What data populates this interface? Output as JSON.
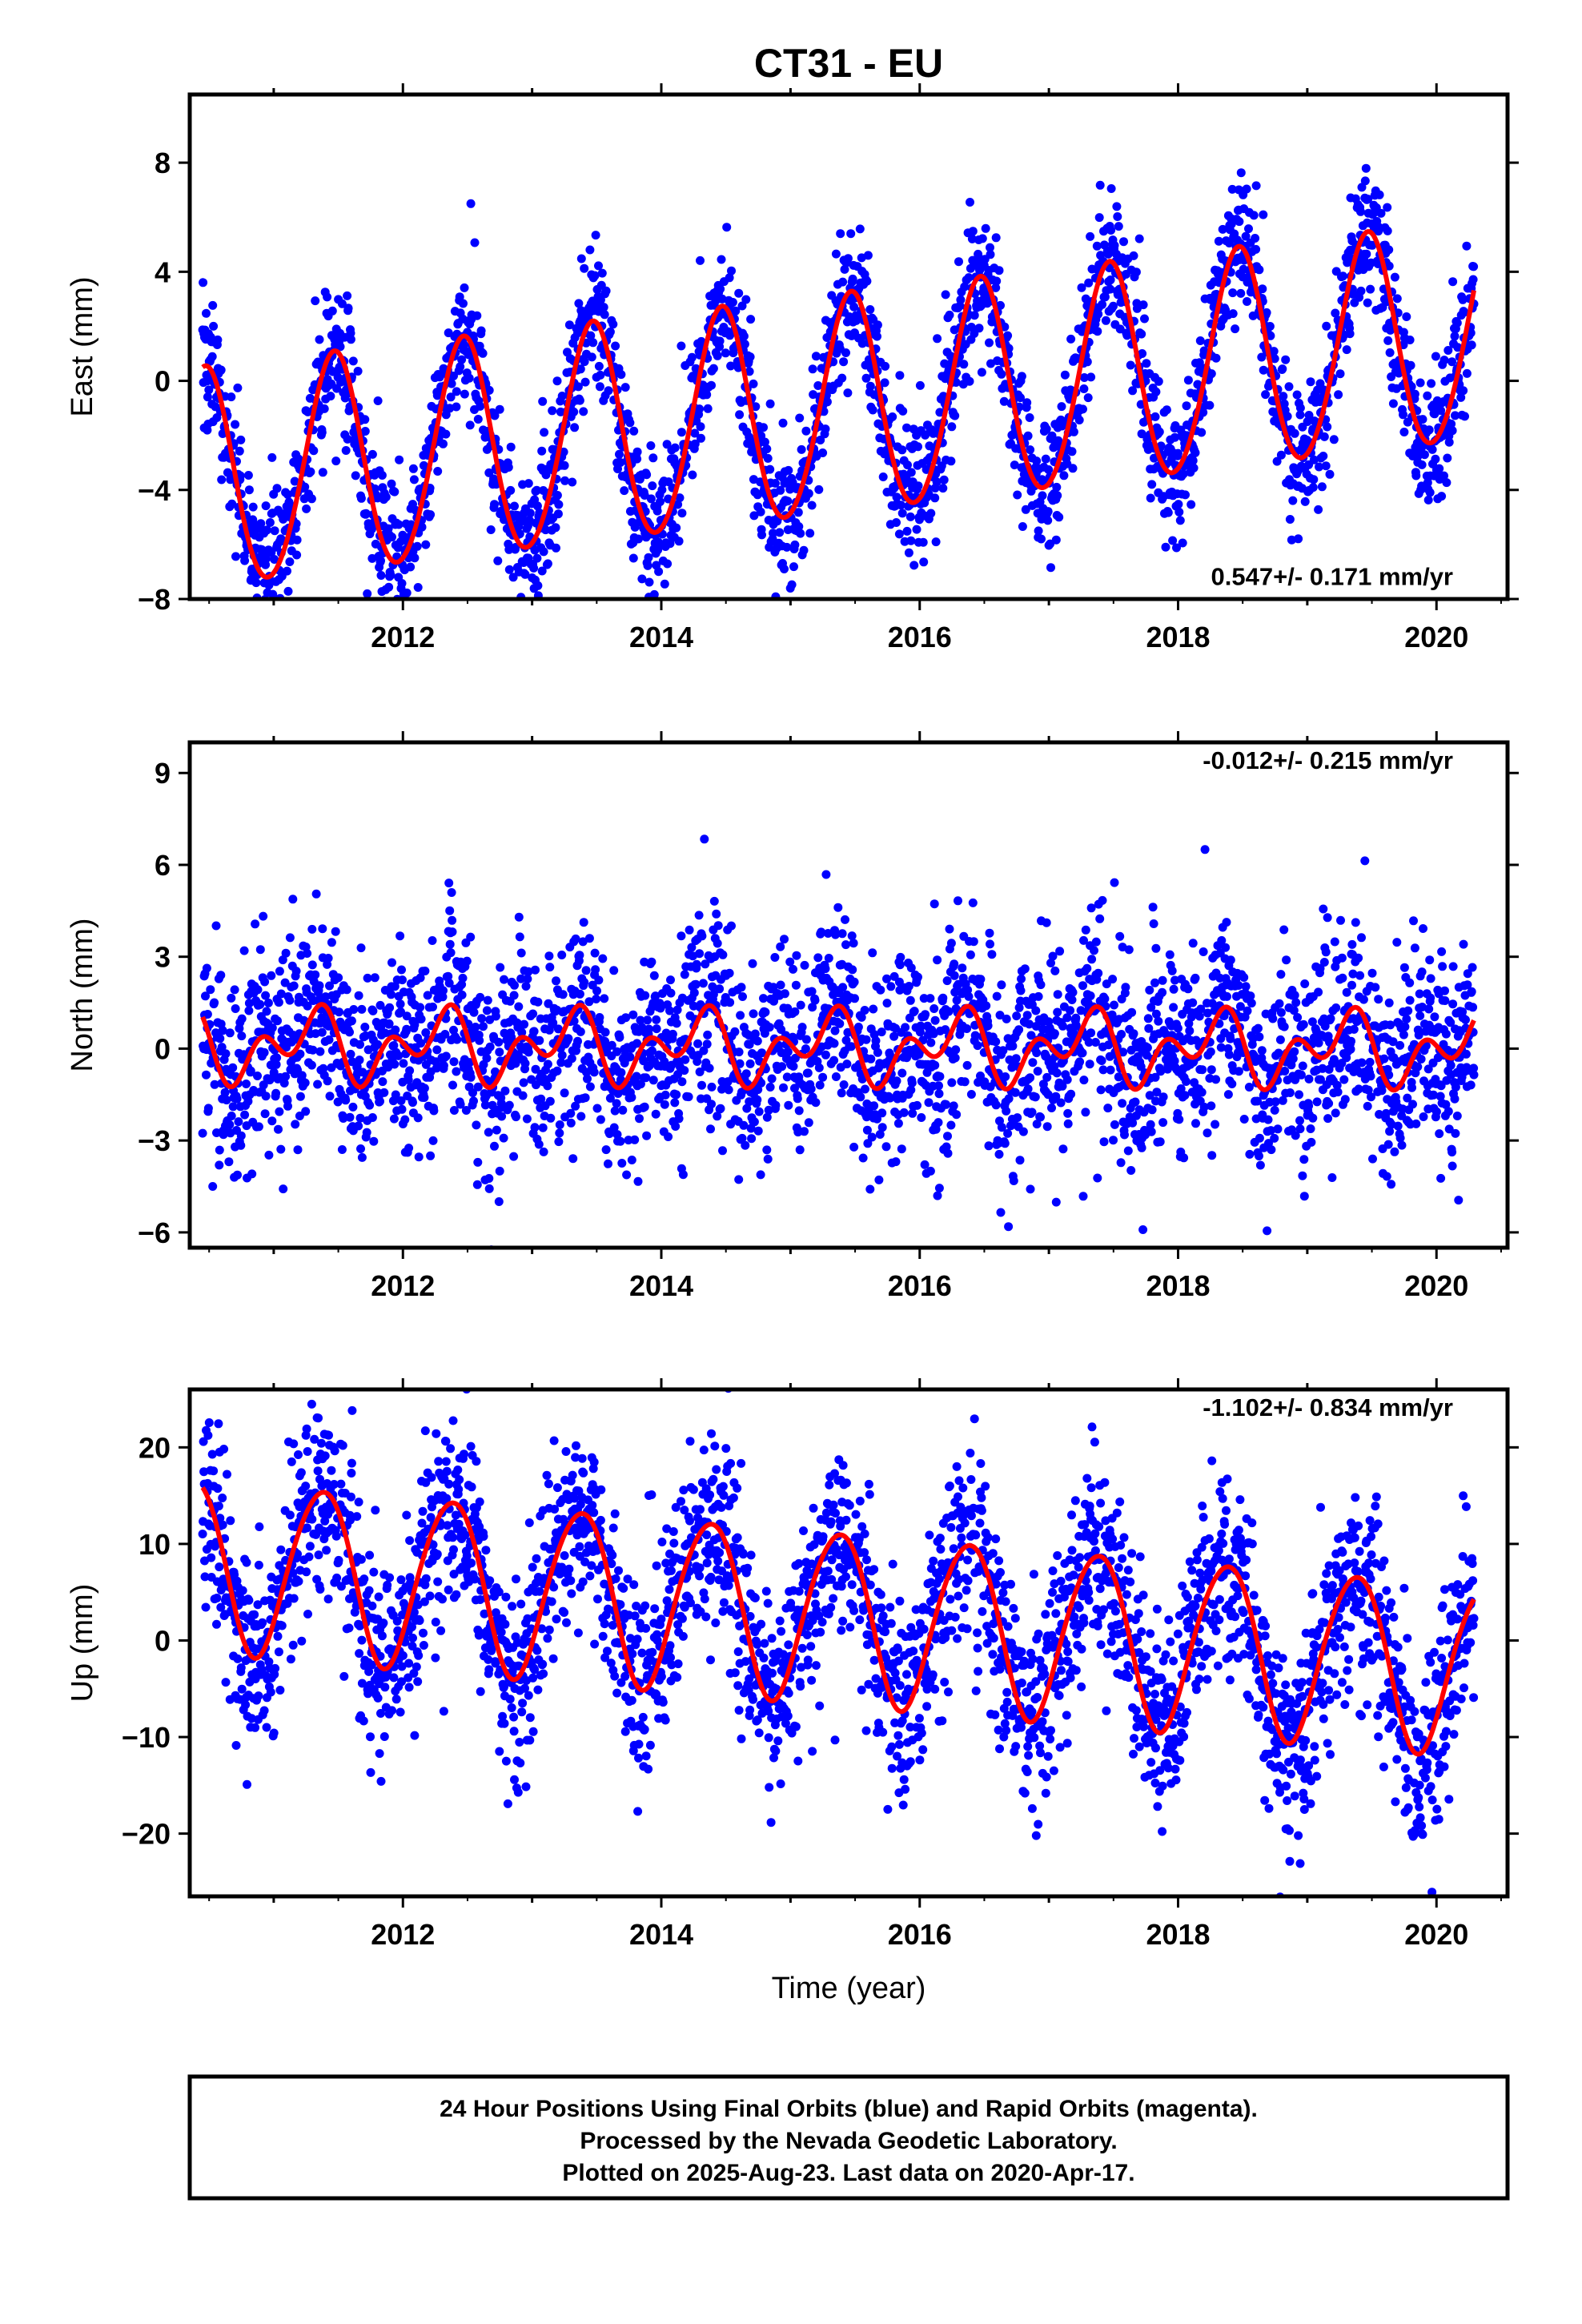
{
  "title": "CT31 - EU",
  "colors": {
    "points": "#0000ff",
    "model": "#ff0000",
    "frame": "#000000"
  },
  "xlabel": "Time (year)",
  "footer": {
    "line1": "24 Hour Positions Using Final Orbits (blue) and Rapid Orbits (magenta).",
    "line2": "Processed by the Nevada Geodetic Laboratory.",
    "line3": "Plotted on 2025-Aug-23. Last data on 2020-Apr-17."
  },
  "chart_data": [
    {
      "type": "scatter",
      "ylabel": "East (mm)",
      "rate_label": "0.547+/- 0.171 mm/yr",
      "xlim": [
        2010.35,
        2020.55
      ],
      "ylim": [
        -8,
        10.5
      ],
      "x_ticks": [
        2012,
        2014,
        2016,
        2018,
        2020
      ],
      "y_ticks": [
        -8,
        -4,
        0,
        4,
        8
      ],
      "grid": false,
      "data_start": 2010.45,
      "data_end": 2020.29,
      "model": {
        "offset": -1.2,
        "trend": 0.547,
        "ref_epoch": 2015.0,
        "annual_cos": -3.9,
        "annual_sin": 0.9,
        "semi_cos": 0.25,
        "semi_sin": 0.0
      },
      "scatter_sd": 1.25,
      "series": [
        {
          "name": "Final Orbits",
          "color": "#0000ff"
        },
        {
          "name": "Model fit",
          "color": "#ff0000"
        }
      ]
    },
    {
      "type": "scatter",
      "ylabel": "North (mm)",
      "rate_label": "-0.012+/- 0.215 mm/yr",
      "xlim": [
        2010.35,
        2020.55
      ],
      "ylim": [
        -6.5,
        10
      ],
      "x_ticks": [
        2012,
        2014,
        2016,
        2018,
        2020
      ],
      "y_ticks": [
        -6,
        -3,
        0,
        3,
        6,
        9
      ],
      "grid": false,
      "data_start": 2010.45,
      "data_end": 2020.29,
      "model": {
        "offset": 0.05,
        "trend": -0.012,
        "ref_epoch": 2015.0,
        "annual_cos": -0.1,
        "annual_sin": 0.75,
        "semi_cos": 0.2,
        "semi_sin": -0.75
      },
      "scatter_sd": 1.6,
      "series": [
        {
          "name": "Final Orbits",
          "color": "#0000ff"
        },
        {
          "name": "Model fit",
          "color": "#ff0000"
        }
      ]
    },
    {
      "type": "scatter",
      "ylabel": "Up (mm)",
      "rate_label": "-1.102+/- 0.834 mm/yr",
      "xlim": [
        2010.35,
        2020.55
      ],
      "ylim": [
        -26.5,
        26
      ],
      "x_ticks": [
        2012,
        2014,
        2016,
        2018,
        2020
      ],
      "y_ticks": [
        -20,
        -10,
        0,
        10,
        20
      ],
      "grid": false,
      "data_start": 2010.45,
      "data_end": 2020.29,
      "model": {
        "offset": 3.0,
        "trend": -1.102,
        "ref_epoch": 2015.0,
        "annual_cos": -6.0,
        "annual_sin": 6.5,
        "semi_cos": 0.5,
        "semi_sin": 0.5
      },
      "scatter_sd": 5.0,
      "series": [
        {
          "name": "Final Orbits",
          "color": "#0000ff"
        },
        {
          "name": "Model fit",
          "color": "#ff0000"
        }
      ]
    }
  ]
}
